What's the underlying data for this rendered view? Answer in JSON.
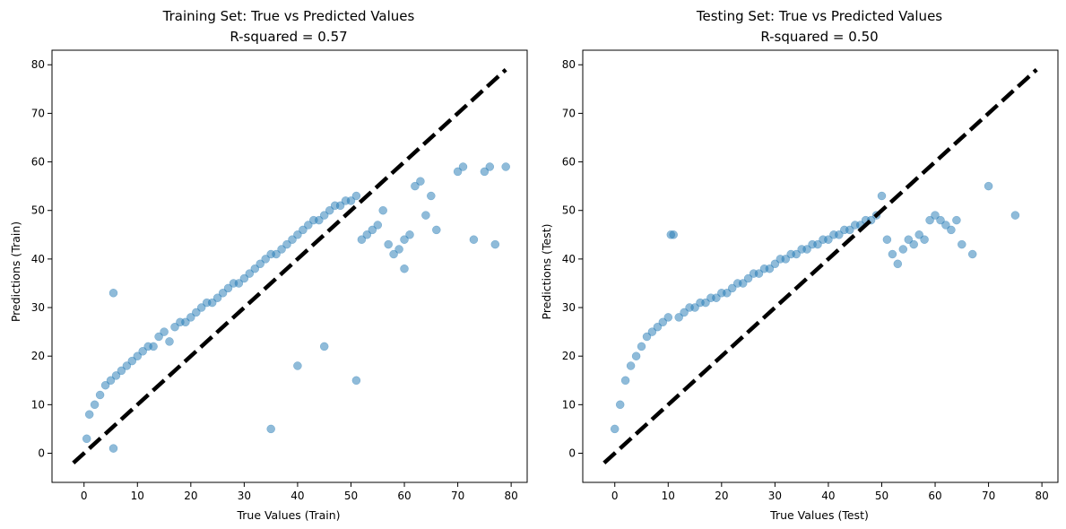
{
  "chart_data": [
    {
      "type": "scatter",
      "title_line1": "Training Set: True vs Predicted Values",
      "title_line2": "R-squared = 0.57",
      "xlabel": "True Values (Train)",
      "ylabel": "Predictions (Train)",
      "xlim": [
        -6,
        83
      ],
      "ylim": [
        -6,
        83
      ],
      "xticks": [
        0,
        10,
        20,
        30,
        40,
        50,
        60,
        70,
        80
      ],
      "yticks": [
        0,
        10,
        20,
        30,
        40,
        50,
        60,
        70,
        80
      ],
      "r_squared": 0.57,
      "point_color": "#1f77b4",
      "point_alpha": 0.5,
      "reference_line": {
        "style": "dashed",
        "color": "#000000",
        "x": [
          -2,
          79
        ],
        "y": [
          -2,
          79
        ]
      },
      "series": [
        {
          "x": [
            0.5,
            1,
            2,
            3,
            4,
            5,
            5.5,
            6,
            7,
            8,
            9,
            10,
            11,
            12,
            13,
            14,
            15,
            16,
            17,
            18,
            19,
            20,
            21,
            22,
            23,
            24,
            25,
            26,
            27,
            28,
            29,
            30,
            31,
            32,
            33,
            34,
            35,
            36,
            37,
            38,
            39,
            40,
            41,
            42,
            43,
            44,
            45,
            46,
            47,
            48,
            49,
            50,
            51,
            52,
            53,
            54,
            55,
            56,
            57,
            58,
            59,
            60,
            61,
            62,
            63,
            64,
            65,
            66,
            70,
            71,
            73,
            75,
            76,
            77,
            79,
            5.5,
            35,
            40,
            45,
            51,
            60
          ],
          "y": [
            3,
            8,
            10,
            12,
            14,
            15,
            33,
            16,
            17,
            18,
            19,
            20,
            21,
            22,
            22,
            24,
            25,
            23,
            26,
            27,
            27,
            28,
            29,
            30,
            31,
            31,
            32,
            33,
            34,
            35,
            35,
            36,
            37,
            38,
            39,
            40,
            41,
            41,
            42,
            43,
            44,
            45,
            46,
            47,
            48,
            48,
            49,
            50,
            51,
            51,
            52,
            52,
            53,
            44,
            45,
            46,
            47,
            50,
            43,
            41,
            42,
            44,
            45,
            55,
            56,
            49,
            53,
            46,
            58,
            59,
            44,
            58,
            59,
            43,
            59,
            1,
            5,
            18,
            22,
            15,
            38
          ],
          "note": "approximate"
        }
      ]
    },
    {
      "type": "scatter",
      "title_line1": "Testing Set: True vs Predicted Values",
      "title_line2": "R-squared = 0.50",
      "xlabel": "True Values (Test)",
      "ylabel": "Predictions (Test)",
      "xlim": [
        -6,
        83
      ],
      "ylim": [
        -6,
        83
      ],
      "xticks": [
        0,
        10,
        20,
        30,
        40,
        50,
        60,
        70,
        80
      ],
      "yticks": [
        0,
        10,
        20,
        30,
        40,
        50,
        60,
        70,
        80
      ],
      "r_squared": 0.5,
      "point_color": "#1f77b4",
      "point_alpha": 0.5,
      "reference_line": {
        "style": "dashed",
        "color": "#000000",
        "x": [
          -2,
          79
        ],
        "y": [
          -2,
          79
        ]
      },
      "series": [
        {
          "x": [
            0,
            1,
            2,
            3,
            4,
            5,
            6,
            7,
            8,
            9,
            10,
            10.5,
            11,
            12,
            13,
            14,
            15,
            16,
            17,
            18,
            19,
            20,
            21,
            22,
            23,
            24,
            25,
            26,
            27,
            28,
            29,
            30,
            31,
            32,
            33,
            34,
            35,
            36,
            37,
            38,
            39,
            40,
            41,
            42,
            43,
            44,
            45,
            46,
            47,
            48,
            49,
            50,
            51,
            52,
            53,
            54,
            55,
            56,
            57,
            58,
            59,
            60,
            61,
            62,
            63,
            64,
            65,
            67,
            70,
            75
          ],
          "y": [
            5,
            10,
            15,
            18,
            20,
            22,
            24,
            25,
            26,
            27,
            28,
            45,
            45,
            28,
            29,
            30,
            30,
            31,
            31,
            32,
            32,
            33,
            33,
            34,
            35,
            35,
            36,
            37,
            37,
            38,
            38,
            39,
            40,
            40,
            41,
            41,
            42,
            42,
            43,
            43,
            44,
            44,
            45,
            45,
            46,
            46,
            47,
            47,
            48,
            48,
            49,
            53,
            44,
            41,
            39,
            42,
            44,
            43,
            45,
            44,
            48,
            49,
            48,
            47,
            46,
            48,
            43,
            41,
            55,
            49
          ],
          "note": "approximate"
        }
      ]
    }
  ]
}
